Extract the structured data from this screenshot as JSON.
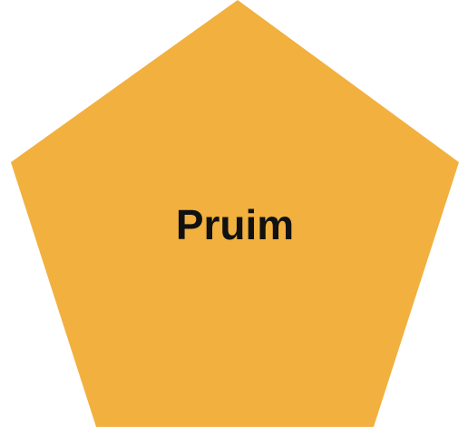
{
  "diagram": {
    "shape": {
      "type": "pentagon",
      "label": "Pruim",
      "fill_color": "#F2B03E",
      "text_color": "#111111"
    },
    "background_color": "#FFFFFF"
  }
}
